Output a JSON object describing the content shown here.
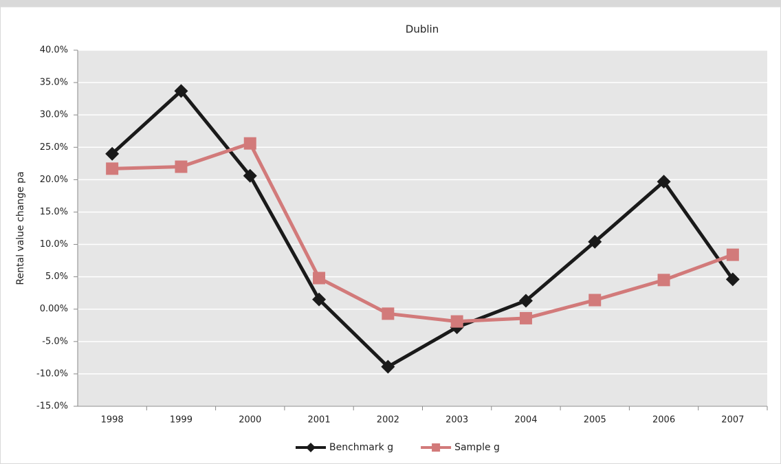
{
  "chart_data": {
    "type": "line",
    "title": "Dublin",
    "y_label": "Rental value change pa",
    "categories": [
      "1998",
      "1999",
      "2000",
      "2001",
      "2002",
      "2003",
      "2004",
      "2005",
      "2006",
      "2007"
    ],
    "series": [
      {
        "name": "Benchmark g",
        "color": "#1a1a1a",
        "marker": "diamond",
        "values": [
          24.0,
          33.7,
          20.6,
          1.5,
          -8.9,
          -2.8,
          1.3,
          10.4,
          19.7,
          4.6
        ]
      },
      {
        "name": "Sample g",
        "color": "#d27a7a",
        "marker": "square",
        "values": [
          21.7,
          22.0,
          25.6,
          4.8,
          -0.7,
          -1.9,
          -1.4,
          1.4,
          4.5,
          8.4
        ]
      }
    ],
    "ylim": [
      -15,
      40
    ],
    "yticks": [
      {
        "value": -15,
        "label": "-15.0%"
      },
      {
        "value": -10,
        "label": "-10.0%"
      },
      {
        "value": -5,
        "label": "-5.0%"
      },
      {
        "value": 0,
        "label": "0.00%"
      },
      {
        "value": 5,
        "label": "5.0%"
      },
      {
        "value": 10,
        "label": "10.0%"
      },
      {
        "value": 15,
        "label": "15.0%"
      },
      {
        "value": 20,
        "label": "20.0%"
      },
      {
        "value": 25,
        "label": "25.0%"
      },
      {
        "value": 30,
        "label": "30.0%"
      },
      {
        "value": 35,
        "label": "35.0%"
      },
      {
        "value": 40,
        "label": "40.0%"
      }
    ],
    "grid": true,
    "legend": "bottom"
  }
}
